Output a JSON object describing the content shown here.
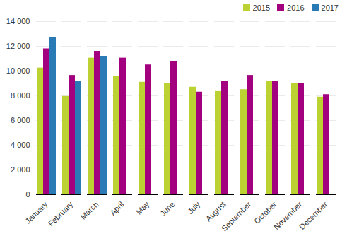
{
  "chart_data": {
    "type": "bar",
    "categories": [
      "January",
      "February",
      "March",
      "April",
      "May",
      "June",
      "July",
      "August",
      "September",
      "October",
      "November",
      "December"
    ],
    "series": [
      {
        "name": "2015",
        "color": "#bcd232",
        "values": [
          10250,
          7950,
          11050,
          9600,
          9100,
          9000,
          8700,
          8350,
          8500,
          9150,
          9000,
          7900
        ]
      },
      {
        "name": "2016",
        "color": "#a3007f",
        "values": [
          11800,
          9650,
          11600,
          11050,
          10500,
          10750,
          8300,
          9150,
          9650,
          9150,
          9000,
          8100
        ]
      },
      {
        "name": "2017",
        "color": "#2a7ab5",
        "values": [
          12700,
          9150,
          11200,
          null,
          null,
          null,
          null,
          null,
          null,
          null,
          null,
          null
        ]
      }
    ],
    "ylim": [
      0,
      14000
    ],
    "yticks": [
      0,
      {
        "value": 2000,
        "label": "2 000"
      },
      {
        "value": 4000,
        "label": "4 000"
      },
      {
        "value": 6000,
        "label": "6 000"
      },
      {
        "value": 8000,
        "label": "8 000"
      },
      {
        "value": 10000,
        "label": "10 000"
      },
      {
        "value": 12000,
        "label": "12 000"
      },
      {
        "value": 14000,
        "label": "14 000"
      }
    ],
    "grid": true,
    "legend": "top-right"
  }
}
